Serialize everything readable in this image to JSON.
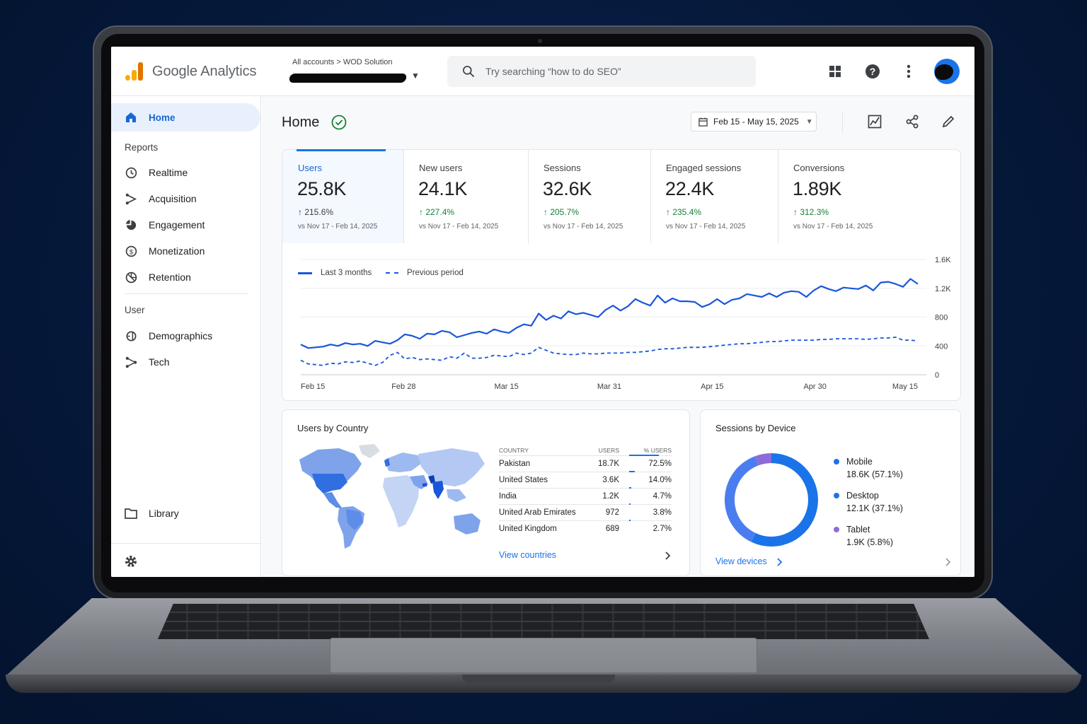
{
  "app": {
    "name": "Google Analytics"
  },
  "header": {
    "breadcrumb": "All accounts > WOD Solution",
    "search_placeholder": "Try searching “how to do SEO”"
  },
  "sidebar": {
    "home": "Home",
    "reports_label": "Reports",
    "reports": [
      "Realtime",
      "Acquisition",
      "Engagement",
      "Monetization",
      "Retention"
    ],
    "user_label": "User",
    "user": [
      "Demographics",
      "Tech"
    ],
    "library": "Library"
  },
  "page": {
    "title": "Home",
    "date_range": "Feb 15 - May 15, 2025"
  },
  "kpis": [
    {
      "name": "Users",
      "value": "25.8K",
      "change": "↑ 215.6%",
      "compare": "vs Nov 17 - Feb 14, 2025"
    },
    {
      "name": "New users",
      "value": "24.1K",
      "change": "↑ 227.4%",
      "compare": "vs Nov 17 - Feb 14, 2025"
    },
    {
      "name": "Sessions",
      "value": "32.6K",
      "change": "↑ 205.7%",
      "compare": "vs Nov 17 - Feb 14, 2025"
    },
    {
      "name": "Engaged sessions",
      "value": "22.4K",
      "change": "↑ 235.4%",
      "compare": "vs Nov 17 - Feb 14, 2025"
    },
    {
      "name": "Conversions",
      "value": "1.89K",
      "change": "↑ 312.3%",
      "compare": "vs Nov 17 - Feb 14, 2025"
    }
  ],
  "chart_data": {
    "type": "line",
    "x_ticks": [
      "Feb 15",
      "Feb 28",
      "Mar 15",
      "Mar 31",
      "Apr 15",
      "Apr 30",
      "May 15"
    ],
    "y_ticks": [
      "0",
      "400",
      "800",
      "1.2K",
      "1.6K"
    ],
    "ylim": [
      0,
      1600
    ],
    "legend_placement": "top-left",
    "series": [
      {
        "name": "Last 3 months",
        "style": "solid",
        "color": "#1a56db",
        "values": [
          420,
          370,
          380,
          390,
          420,
          400,
          440,
          420,
          430,
          400,
          470,
          450,
          430,
          480,
          560,
          540,
          500,
          570,
          560,
          610,
          590,
          520,
          550,
          580,
          600,
          570,
          630,
          600,
          580,
          650,
          700,
          680,
          850,
          760,
          820,
          780,
          880,
          840,
          860,
          830,
          800,
          900,
          960,
          890,
          950,
          1050,
          1000,
          960,
          1100,
          1000,
          1060,
          1020,
          1020,
          1010,
          940,
          980,
          1050,
          980,
          1040,
          1060,
          1120,
          1100,
          1080,
          1130,
          1080,
          1140,
          1160,
          1150,
          1080,
          1170,
          1230,
          1190,
          1160,
          1210,
          1200,
          1190,
          1240,
          1170,
          1280,
          1290,
          1260,
          1220,
          1330,
          1260
        ]
      },
      {
        "name": "Previous period",
        "style": "dashed",
        "color": "#1a56db",
        "values": [
          200,
          150,
          140,
          130,
          160,
          150,
          180,
          170,
          190,
          160,
          130,
          170,
          270,
          310,
          220,
          240,
          210,
          220,
          210,
          200,
          250,
          230,
          300,
          230,
          230,
          240,
          270,
          260,
          250,
          300,
          280,
          300,
          380,
          340,
          300,
          290,
          280,
          280,
          300,
          290,
          290,
          300,
          300,
          300,
          310,
          310,
          320,
          330,
          350,
          360,
          360,
          370,
          380,
          380,
          380,
          390,
          400,
          410,
          420,
          430,
          430,
          440,
          450,
          460,
          460,
          470,
          480,
          480,
          480,
          480,
          490,
          490,
          500,
          500,
          500,
          500,
          490,
          500,
          510,
          510,
          520,
          480,
          480,
          470
        ]
      }
    ]
  },
  "country": {
    "title": "Users by Country",
    "headers": [
      "COUNTRY",
      "USERS",
      "% USERS"
    ],
    "rows": [
      {
        "country": "Pakistan",
        "users": "18.7K",
        "pct": "72.5%",
        "share": 0.725
      },
      {
        "country": "United States",
        "users": "3.6K",
        "pct": "14.0%",
        "share": 0.14
      },
      {
        "country": "India",
        "users": "1.2K",
        "pct": "4.7%",
        "share": 0.047
      },
      {
        "country": "United Arab Emirates",
        "users": "972",
        "pct": "3.8%",
        "share": 0.038
      },
      {
        "country": "United Kingdom",
        "users": "689",
        "pct": "2.7%",
        "share": 0.027
      }
    ],
    "link": "View countries"
  },
  "device": {
    "title": "Sessions by Device",
    "items": [
      {
        "name": "Mobile",
        "value": "18.6K (57.1%)",
        "share": 0.571,
        "color": "#1a73e8"
      },
      {
        "name": "Desktop",
        "value": "12.1K (37.1%)",
        "share": 0.371,
        "color": "#4a7ef0"
      },
      {
        "name": "Tablet",
        "value": "1.9K (5.8%)",
        "share": 0.058,
        "color": "#8e6bd8"
      }
    ],
    "link": "View devices"
  }
}
